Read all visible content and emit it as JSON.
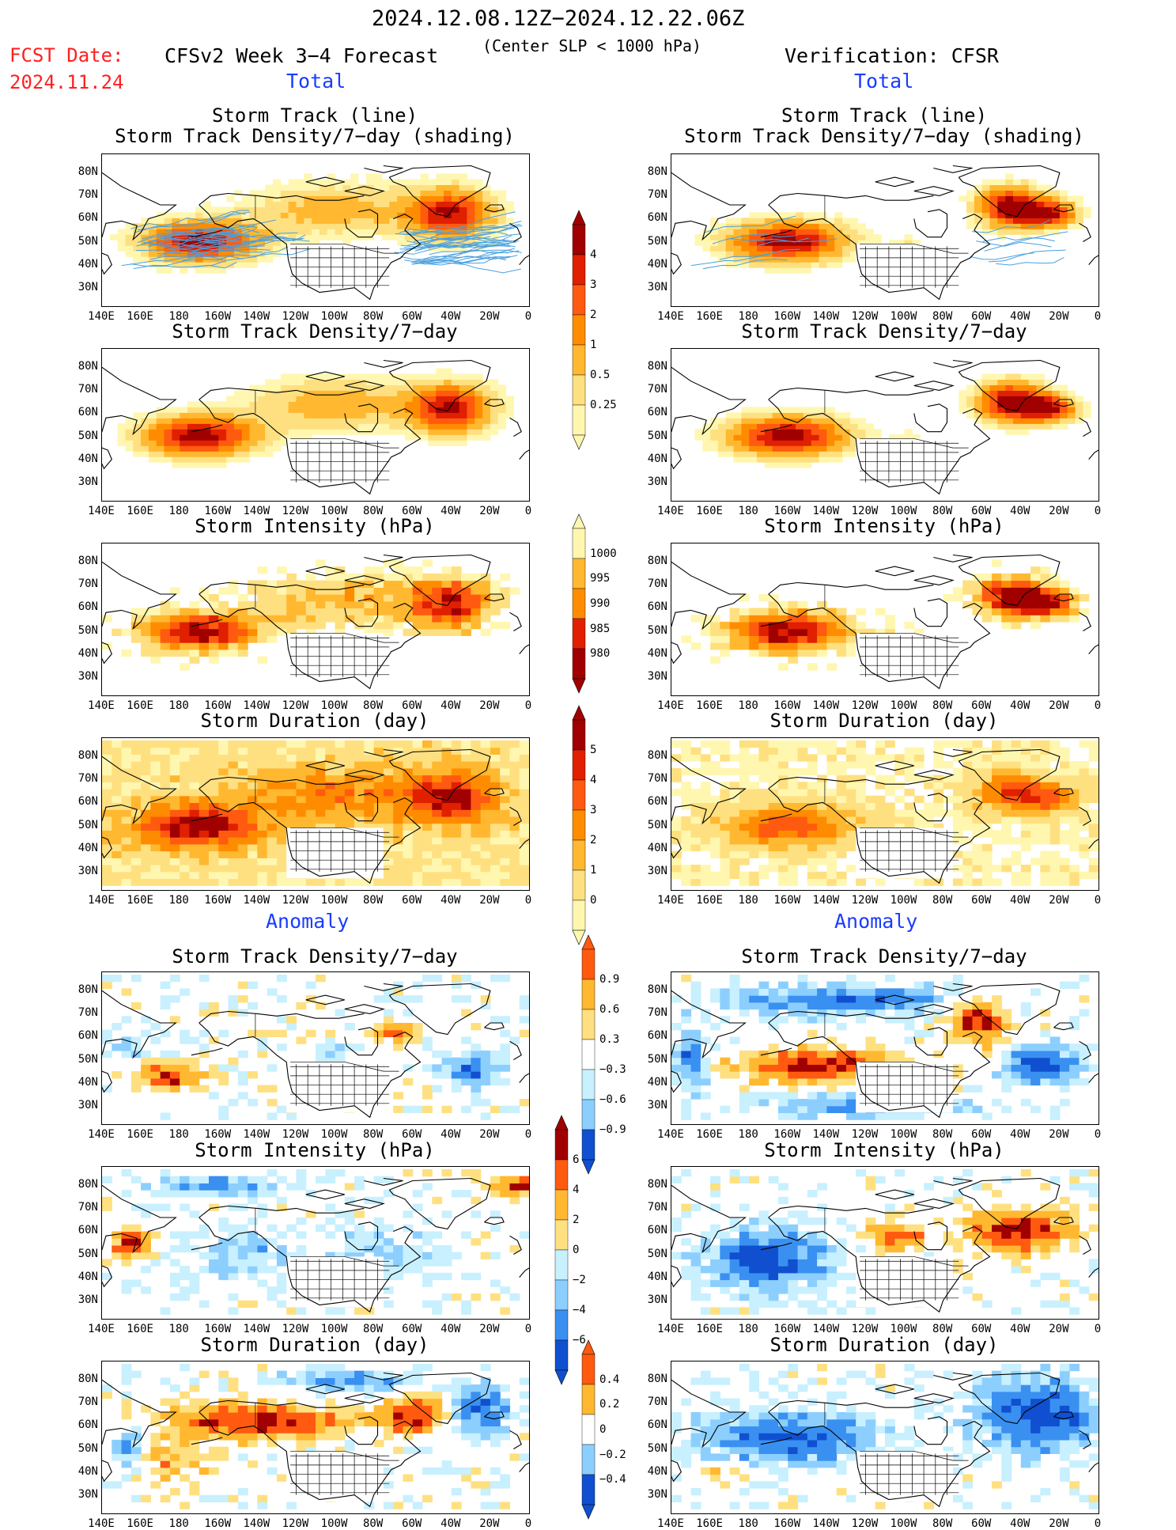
{
  "header": {
    "date_range": "2024.12.08.12Z−2024.12.22.06Z",
    "fcst_date_label": "FCST Date:",
    "fcst_date": "2024.11.24",
    "forecast_title": "CFSv2 Week 3−4 Forecast",
    "slp_note": "(Center SLP < 1000 hPa)",
    "verification": "Verification: CFSR"
  },
  "sections": {
    "total": "Total",
    "anomaly": "Anomaly"
  },
  "panel_titles": {
    "track_line": "Storm Track (line)",
    "track_shading": "Storm Track Density/7−day (shading)",
    "density": "Storm Track Density/7−day",
    "intensity": "Storm Intensity (hPa)",
    "duration": "Storm Duration (day)"
  },
  "axes": {
    "lat_labels": [
      "80N",
      "70N",
      "60N",
      "50N",
      "40N",
      "30N"
    ],
    "lon_labels": [
      "140E",
      "160E",
      "180",
      "160W",
      "140W",
      "120W",
      "100W",
      "80W",
      "60W",
      "40W",
      "20W",
      "0"
    ]
  },
  "colorbars": {
    "density_total": [
      "4",
      "3",
      "2",
      "1",
      "0.5",
      "0.25"
    ],
    "intensity_total": [
      "1000",
      "995",
      "990",
      "985",
      "980"
    ],
    "duration_total": [
      "5",
      "4",
      "3",
      "2",
      "1",
      "0"
    ],
    "density_anom": [
      "0.9",
      "0.6",
      "0.3",
      "−0.3",
      "−0.6",
      "−0.9"
    ],
    "intensity_anom": [
      "6",
      "4",
      "2",
      "0",
      "−2",
      "−4",
      "−6"
    ],
    "duration_anom": [
      "0.4",
      "0.2",
      "0",
      "−0.2",
      "−0.4"
    ]
  },
  "colors": {
    "warm": [
      "#fff7b0",
      "#ffe080",
      "#ffb830",
      "#ff8c00",
      "#ff5a10",
      "#e02000",
      "#a00000"
    ],
    "cool": [
      "#c8f0ff",
      "#8ccfff",
      "#3a90f0",
      "#1050d0"
    ],
    "track_line": "#4aa0e0",
    "title_red": "#ff2020",
    "section_blue": "#1a3cff"
  }
}
